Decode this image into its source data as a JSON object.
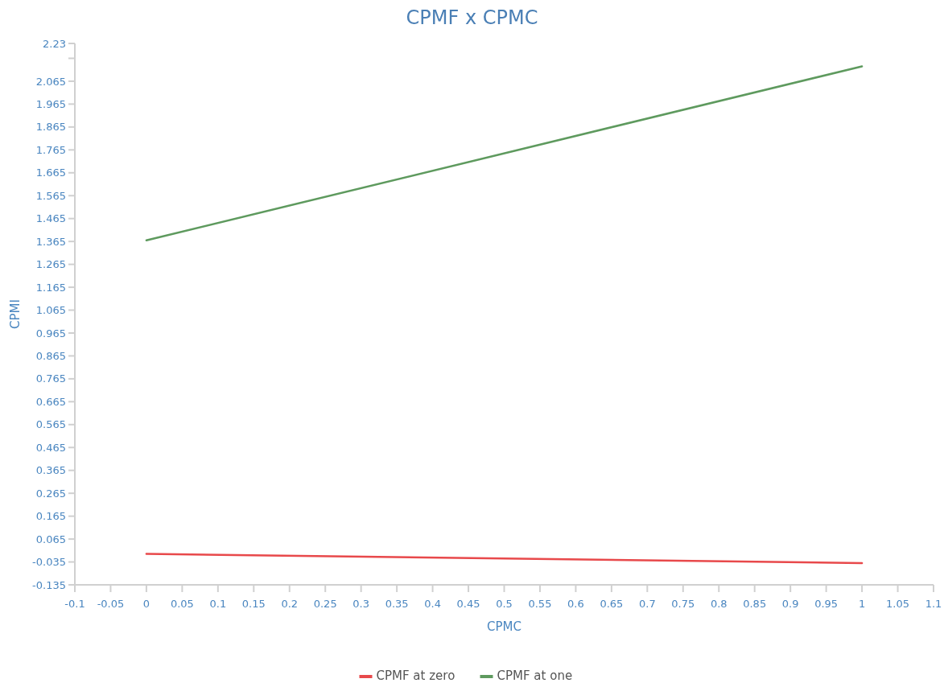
{
  "chart_data": {
    "type": "line",
    "title": "CPMF x CPMC",
    "xlabel": "CPMC",
    "ylabel": "CPMI",
    "x": [
      0,
      1
    ],
    "series": [
      {
        "name": "CPMF at zero",
        "color": "#e8494b",
        "values": [
          0.0,
          -0.04
        ]
      },
      {
        "name": "CPMF at one",
        "color": "#5e9a5e",
        "values": [
          1.37,
          2.13
        ]
      }
    ],
    "xlim": [
      -0.1,
      1.1
    ],
    "xticks": [
      -0.1,
      -0.05,
      0,
      0.05,
      0.1,
      0.15,
      0.2,
      0.25,
      0.3,
      0.35,
      0.4,
      0.45,
      0.5,
      0.55,
      0.6,
      0.65,
      0.7,
      0.75,
      0.8,
      0.85,
      0.9,
      0.95,
      1,
      1.05,
      1.1
    ],
    "ylim": [
      -0.135,
      2.23
    ],
    "yticks": [
      -0.135,
      -0.035,
      0.065,
      0.165,
      0.265,
      0.365,
      0.465,
      0.565,
      0.665,
      0.765,
      0.865,
      0.965,
      1.065,
      1.165,
      1.265,
      1.365,
      1.465,
      1.565,
      1.665,
      1.765,
      1.865,
      1.965,
      2.065,
      {
        "value": 2.165,
        "label": null
      },
      2.23
    ],
    "grid": false,
    "legend": "bottom",
    "marker": "none",
    "line_style": "solid"
  }
}
